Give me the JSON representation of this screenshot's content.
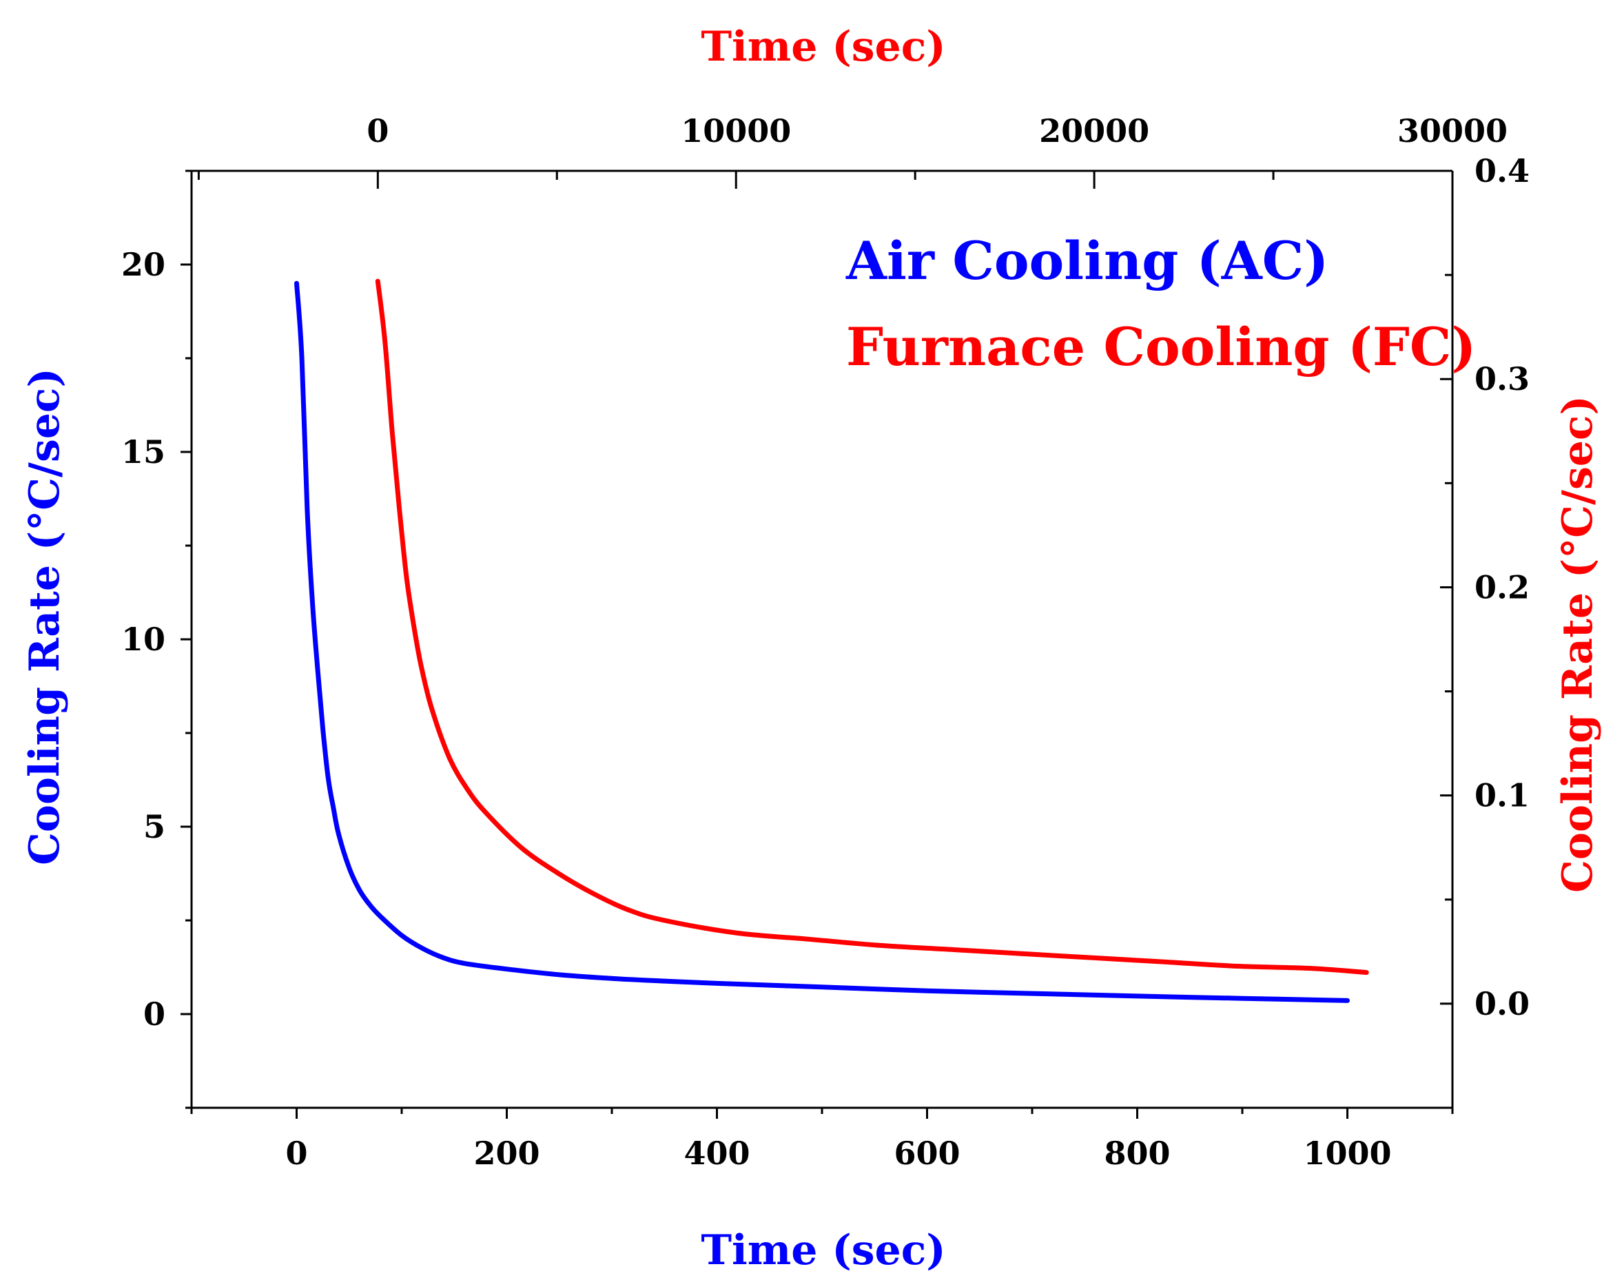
{
  "chart_data": {
    "type": "line",
    "colors": {
      "ac": "#0000ff",
      "fc": "#ff0000",
      "axis": "#000000"
    },
    "x_bottom": {
      "label": "Time (sec)",
      "range": [
        -100,
        1100
      ],
      "ticks": [
        0,
        200,
        400,
        600,
        800,
        1000
      ],
      "tick_labels": [
        "0",
        "200",
        "400",
        "600",
        "800",
        "1000"
      ],
      "minor_step": 100
    },
    "x_top": {
      "label": "Time (sec)",
      "range": [
        -5200,
        30000
      ],
      "ticks": [
        0,
        10000,
        20000,
        30000
      ],
      "tick_labels": [
        "0",
        "10000",
        "20000",
        "30000"
      ],
      "minor_step": 5000
    },
    "y_left": {
      "label": "Cooling Rate (°C/sec)",
      "range": [
        -2.5,
        22.5
      ],
      "ticks": [
        0,
        5,
        10,
        15,
        20
      ],
      "tick_labels": [
        "0",
        "5",
        "10",
        "15",
        "20"
      ],
      "minor_step": 2.5
    },
    "y_right": {
      "label": "Cooling Rate (°C/sec)",
      "range": [
        -0.05,
        0.4
      ],
      "ticks": [
        0.0,
        0.1,
        0.2,
        0.3,
        0.4
      ],
      "tick_labels": [
        "0.0",
        "0.1",
        "0.2",
        "0.3",
        "0.4"
      ],
      "minor_step": 0.05
    },
    "legend": [
      "Air Cooling (AC)",
      "Furnace Cooling (FC)"
    ],
    "series": [
      {
        "name": "Air Cooling (AC)",
        "axes": "bottom-left",
        "x": [
          0,
          5,
          10,
          15,
          20,
          25,
          30,
          35,
          40,
          50,
          60,
          70,
          80,
          100,
          120,
          140,
          160,
          200,
          250,
          300,
          350,
          400,
          500,
          600,
          700,
          800,
          900,
          1000
        ],
        "y": [
          19.5,
          17.5,
          13.5,
          11.0,
          9.2,
          7.6,
          6.3,
          5.5,
          4.8,
          3.9,
          3.3,
          2.9,
          2.6,
          2.1,
          1.75,
          1.5,
          1.35,
          1.2,
          1.05,
          0.95,
          0.88,
          0.82,
          0.72,
          0.62,
          0.55,
          0.48,
          0.42,
          0.36
        ]
      },
      {
        "name": "Furnace Cooling (FC)",
        "axes": "top-right",
        "x": [
          0,
          200,
          400,
          600,
          800,
          1000,
          1200,
          1500,
          2000,
          2500,
          3000,
          4000,
          5000,
          6000,
          7000,
          8000,
          10000,
          12000,
          14000,
          16000,
          18000,
          20000,
          22000,
          24000,
          26000,
          27600
        ],
        "y": [
          0.347,
          0.318,
          0.275,
          0.238,
          0.205,
          0.182,
          0.163,
          0.142,
          0.118,
          0.103,
          0.092,
          0.075,
          0.063,
          0.053,
          0.045,
          0.04,
          0.034,
          0.031,
          0.028,
          0.026,
          0.024,
          0.022,
          0.02,
          0.018,
          0.017,
          0.015
        ]
      }
    ]
  }
}
